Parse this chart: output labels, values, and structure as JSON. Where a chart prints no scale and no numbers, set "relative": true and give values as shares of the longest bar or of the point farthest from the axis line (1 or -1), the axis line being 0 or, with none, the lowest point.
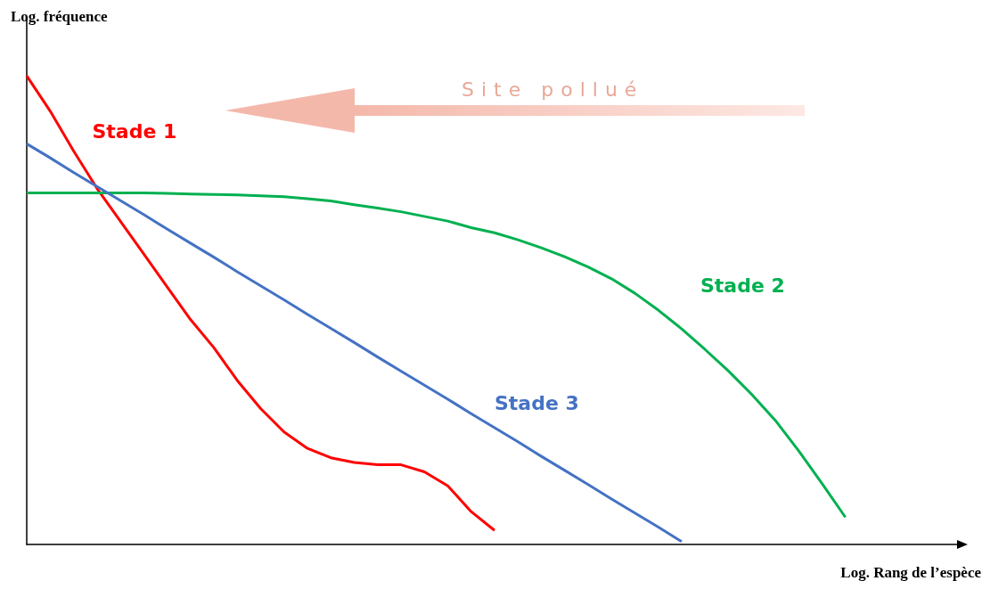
{
  "chart_data": {
    "type": "line",
    "relative": true,
    "xlabel": "Log. Rang de l’espèce",
    "ylabel": "Log. fréquence",
    "categories": [
      null,
      null,
      null,
      null,
      null,
      null,
      null,
      null,
      null,
      null,
      null,
      null,
      null,
      null,
      null,
      null,
      null,
      null,
      null,
      null,
      null,
      null,
      null,
      null,
      null,
      null,
      null,
      null,
      null,
      null,
      null,
      null,
      null,
      null,
      null,
      null,
      null,
      null,
      null,
      null,
      null
    ],
    "series": [
      {
        "name": "Stade 1",
        "color": "#ff0000",
        "values": [
          1.0,
          0.925,
          0.84,
          0.76,
          0.69,
          0.62,
          0.55,
          0.48,
          0.42,
          0.35,
          0.29,
          0.24,
          0.205,
          0.185,
          0.175,
          0.17,
          0.17,
          0.155,
          0.125,
          0.07,
          0.03,
          null,
          null,
          null,
          null,
          null,
          null,
          null,
          null,
          null,
          null,
          null,
          null,
          null,
          null,
          null,
          null,
          null,
          null,
          null,
          null
        ]
      },
      {
        "name": "Stade 2",
        "color": "#00b050",
        "values": [
          0.75,
          0.75,
          0.75,
          0.75,
          0.75,
          0.75,
          0.749,
          0.748,
          0.747,
          0.746,
          0.744,
          0.742,
          0.738,
          0.733,
          0.725,
          0.718,
          0.71,
          0.7,
          0.69,
          0.676,
          0.665,
          0.65,
          0.633,
          0.614,
          0.592,
          0.567,
          0.536,
          0.5,
          0.46,
          0.416,
          0.37,
          0.32,
          0.265,
          0.2,
          0.13,
          0.058,
          null,
          null,
          null,
          null,
          null
        ]
      },
      {
        "name": "Stade 3",
        "color": "#4472c4",
        "values": [
          0.855,
          0.825,
          0.794,
          0.764,
          0.734,
          0.704,
          0.673,
          0.643,
          0.613,
          0.582,
          0.552,
          0.522,
          0.491,
          0.461,
          0.431,
          0.4,
          0.37,
          0.34,
          0.31,
          0.279,
          0.249,
          0.219,
          0.188,
          0.158,
          0.128,
          0.097,
          0.067,
          0.037,
          0.006,
          null,
          null,
          null,
          null,
          null,
          null,
          null,
          null,
          null,
          null,
          null,
          null
        ]
      }
    ],
    "annotations": [
      "Site pollué"
    ]
  }
}
